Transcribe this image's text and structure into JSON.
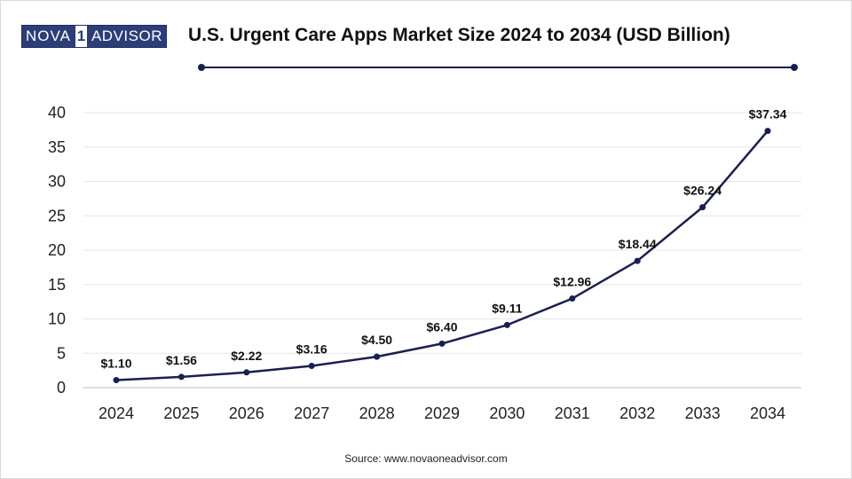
{
  "logo": {
    "left": "NOVA",
    "mark": "1",
    "right": "ADVISOR"
  },
  "accent_color": "#1b1f4f",
  "source": "Source: www.novaoneadvisor.com",
  "chart_data": {
    "type": "line",
    "title": "U.S. Urgent Care Apps Market Size 2024 to 2034 (USD Billion)",
    "xlabel": "",
    "ylabel": "",
    "categories": [
      "2024",
      "2025",
      "2026",
      "2027",
      "2028",
      "2029",
      "2030",
      "2031",
      "2032",
      "2033",
      "2034"
    ],
    "values": [
      1.1,
      1.56,
      2.22,
      3.16,
      4.5,
      6.4,
      9.11,
      12.96,
      18.44,
      26.24,
      37.34
    ],
    "data_labels": [
      "$1.10",
      "$1.56",
      "$2.22",
      "$3.16",
      "$4.50",
      "$6.40",
      "$9.11",
      "$12.96",
      "$18.44",
      "$26.24",
      "$37.34"
    ],
    "yticks": [
      0,
      5,
      10,
      15,
      20,
      25,
      30,
      35,
      40
    ],
    "ylim": [
      0,
      40
    ],
    "grid": true,
    "legend": "none"
  }
}
